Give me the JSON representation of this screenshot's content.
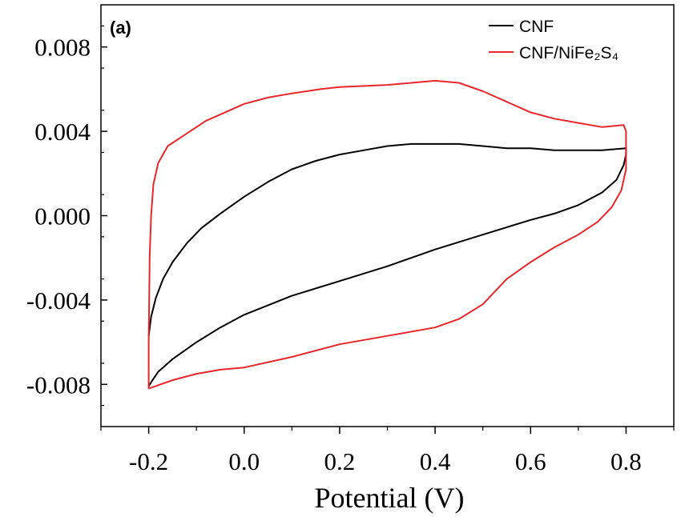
{
  "chart_data": {
    "type": "line",
    "panel_label": "(a)",
    "xlabel": "Potential (V)",
    "ylabel": "",
    "xlim": [
      -0.3,
      0.9
    ],
    "ylim": [
      -0.01,
      0.01
    ],
    "x_ticks": [
      -0.2,
      0.0,
      0.2,
      0.4,
      0.6,
      0.8
    ],
    "x_tick_labels": [
      "-0.2",
      "0.0",
      "0.2",
      "0.4",
      "0.6",
      "0.8"
    ],
    "y_ticks": [
      0.008,
      0.004,
      0.0,
      -0.004,
      -0.008
    ],
    "y_tick_labels": [
      "0.008",
      "0.004",
      "0.000",
      "-0.004",
      "-0.008"
    ],
    "grid": false,
    "legend_position": "top-right",
    "series": [
      {
        "name": "CNF",
        "color": "#000000",
        "points": [
          [
            -0.2,
            -0.0057
          ],
          [
            -0.195,
            -0.0048
          ],
          [
            -0.185,
            -0.0039
          ],
          [
            -0.17,
            -0.003
          ],
          [
            -0.15,
            -0.0022
          ],
          [
            -0.12,
            -0.0013
          ],
          [
            -0.09,
            -0.0006
          ],
          [
            -0.05,
            0.0001
          ],
          [
            0.0,
            0.0009
          ],
          [
            0.05,
            0.0016
          ],
          [
            0.1,
            0.0022
          ],
          [
            0.15,
            0.0026
          ],
          [
            0.2,
            0.0029
          ],
          [
            0.25,
            0.0031
          ],
          [
            0.3,
            0.0033
          ],
          [
            0.35,
            0.0034
          ],
          [
            0.4,
            0.0034
          ],
          [
            0.45,
            0.0034
          ],
          [
            0.5,
            0.0033
          ],
          [
            0.55,
            0.0032
          ],
          [
            0.6,
            0.0032
          ],
          [
            0.65,
            0.0031
          ],
          [
            0.7,
            0.0031
          ],
          [
            0.75,
            0.0031
          ],
          [
            0.8,
            0.0032
          ],
          [
            0.8,
            0.0029
          ],
          [
            0.795,
            0.0024
          ],
          [
            0.78,
            0.0017
          ],
          [
            0.75,
            0.0011
          ],
          [
            0.7,
            0.0005
          ],
          [
            0.65,
            0.0001
          ],
          [
            0.6,
            -0.0002
          ],
          [
            0.5,
            -0.0009
          ],
          [
            0.4,
            -0.0016
          ],
          [
            0.3,
            -0.0024
          ],
          [
            0.2,
            -0.0031
          ],
          [
            0.1,
            -0.0038
          ],
          [
            0.0,
            -0.0047
          ],
          [
            -0.05,
            -0.0053
          ],
          [
            -0.1,
            -0.006
          ],
          [
            -0.15,
            -0.0068
          ],
          [
            -0.18,
            -0.0074
          ],
          [
            -0.195,
            -0.0079
          ],
          [
            -0.2,
            -0.0081
          ]
        ]
      },
      {
        "name": "CNF/NiFe₂S₄",
        "color": "#e8262b",
        "points": [
          [
            -0.2,
            -0.0082
          ],
          [
            -0.2,
            -0.006
          ],
          [
            -0.199,
            -0.004
          ],
          [
            -0.198,
            -0.002
          ],
          [
            -0.195,
            0.0
          ],
          [
            -0.19,
            0.0015
          ],
          [
            -0.18,
            0.0025
          ],
          [
            -0.16,
            0.0033
          ],
          [
            -0.12,
            0.0039
          ],
          [
            -0.08,
            0.0045
          ],
          [
            -0.04,
            0.0049
          ],
          [
            0.0,
            0.0053
          ],
          [
            0.05,
            0.0056
          ],
          [
            0.1,
            0.0058
          ],
          [
            0.16,
            0.006
          ],
          [
            0.2,
            0.0061
          ],
          [
            0.3,
            0.0062
          ],
          [
            0.4,
            0.0064
          ],
          [
            0.45,
            0.0063
          ],
          [
            0.5,
            0.0059
          ],
          [
            0.55,
            0.0054
          ],
          [
            0.6,
            0.0049
          ],
          [
            0.65,
            0.0046
          ],
          [
            0.7,
            0.0044
          ],
          [
            0.75,
            0.0042
          ],
          [
            0.795,
            0.0043
          ],
          [
            0.8,
            0.004
          ],
          [
            0.8,
            0.0035
          ],
          [
            0.8,
            0.0022
          ],
          [
            0.79,
            0.0012
          ],
          [
            0.77,
            0.0004
          ],
          [
            0.74,
            -0.0003
          ],
          [
            0.7,
            -0.0009
          ],
          [
            0.65,
            -0.0015
          ],
          [
            0.6,
            -0.0022
          ],
          [
            0.55,
            -0.003
          ],
          [
            0.5,
            -0.0042
          ],
          [
            0.45,
            -0.0049
          ],
          [
            0.4,
            -0.0053
          ],
          [
            0.3,
            -0.0057
          ],
          [
            0.2,
            -0.0061
          ],
          [
            0.1,
            -0.0067
          ],
          [
            0.0,
            -0.0072
          ],
          [
            -0.05,
            -0.0073
          ],
          [
            -0.1,
            -0.0075
          ],
          [
            -0.15,
            -0.0078
          ],
          [
            -0.2,
            -0.0082
          ]
        ]
      }
    ]
  }
}
